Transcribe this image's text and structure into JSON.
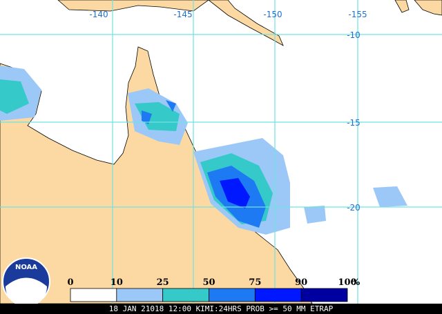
{
  "map": {
    "lon_labels": [
      "-140",
      "-145",
      "-150",
      "-155"
    ],
    "lat_labels": [
      "-10",
      "-15",
      "-20"
    ],
    "legend": {
      "labels": [
        0,
        10,
        25,
        50,
        75,
        90,
        100
      ],
      "unit": "%",
      "colors": [
        "#ffffff",
        "#9cc8f8",
        "#35c9c9",
        "#1e7af2",
        "#0018ff",
        "#0000a0"
      ]
    },
    "logo": "NOAA",
    "caption": "18 JAN 21018 12:00 KIMI:24HRS PROB >= 50 MM ETRAP"
  }
}
